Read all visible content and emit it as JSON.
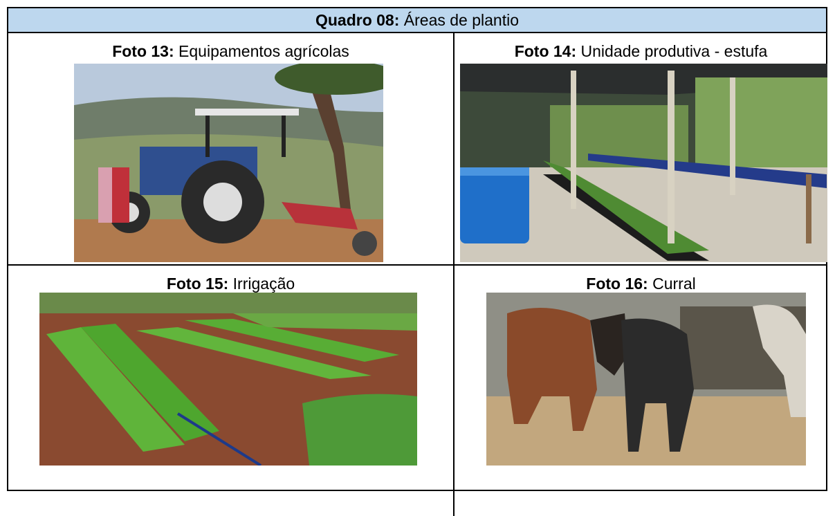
{
  "table": {
    "title": {
      "label": "Quadro 08:",
      "text": "Áreas de plantio"
    },
    "cells": [
      {
        "label": "Foto 13:",
        "text": "Equipamentos agrícolas"
      },
      {
        "label": "Foto 14:",
        "text": "Unidade produtiva - estufa"
      },
      {
        "label": "Foto 15:",
        "text": "Irrigação"
      },
      {
        "label": "Foto 16:",
        "text": "Curral"
      }
    ]
  }
}
